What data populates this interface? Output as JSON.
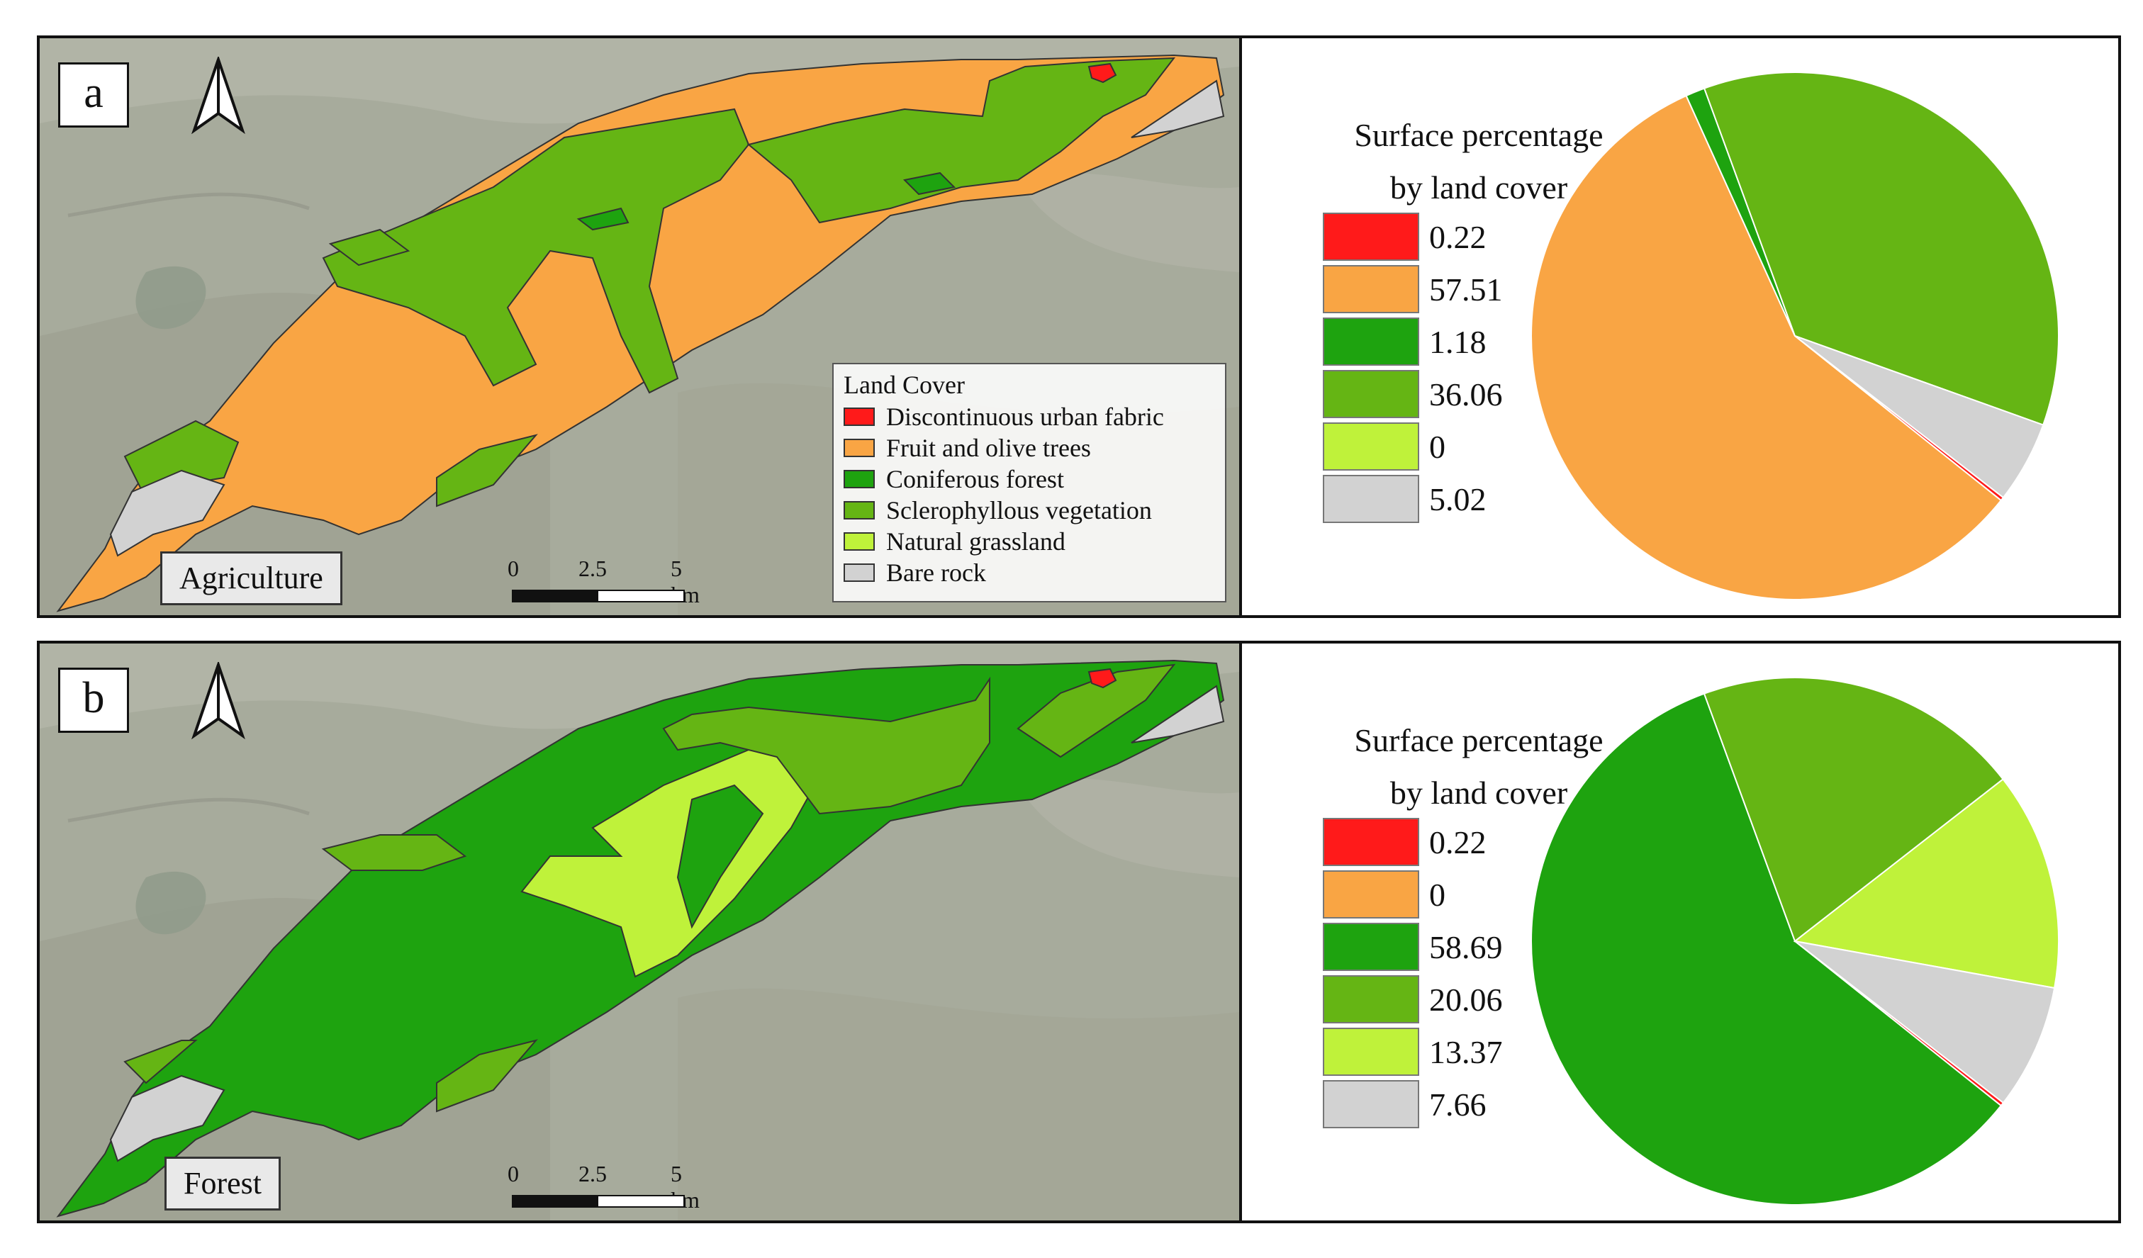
{
  "colors": {
    "urban": "#ff1a1a",
    "fruit": "#f9a544",
    "conifer": "#1ea30f",
    "scler": "#65b514",
    "grass": "#bff23a",
    "rock": "#d2d2d2"
  },
  "legend": {
    "title": "Land Cover",
    "items": [
      {
        "label": "Discontinuous urban fabric",
        "color": "#ff1a1a"
      },
      {
        "label": "Fruit and olive trees",
        "color": "#f9a544"
      },
      {
        "label": "Coniferous forest",
        "color": "#1ea30f"
      },
      {
        "label": "Sclerophyllous vegetation",
        "color": "#65b514"
      },
      {
        "label": "Natural grassland",
        "color": "#bff23a"
      },
      {
        "label": "Bare rock",
        "color": "#d2d2d2"
      }
    ]
  },
  "scale": {
    "ticks": [
      "0",
      "2.5",
      "5 km"
    ]
  },
  "north_arrow_icon": "north-arrow-icon",
  "panels": [
    {
      "letter": "a",
      "label": "Agriculture"
    },
    {
      "letter": "b",
      "label": "Forest"
    }
  ],
  "chart_data": [
    {
      "type": "pie",
      "title": "Surface percentage by land cover",
      "title_lines": [
        "Surface percentage",
        "by land cover"
      ],
      "categories": [
        "Discontinuous urban fabric",
        "Fruit and olive trees",
        "Coniferous forest",
        "Sclerophyllous vegetation",
        "Natural grassland",
        "Bare rock"
      ],
      "values": [
        0.22,
        57.51,
        1.18,
        36.06,
        0,
        5.02
      ],
      "labels": [
        "0.22",
        "57.51",
        "1.18",
        "36.06",
        "0",
        "5.02"
      ],
      "colors": [
        "#ff1a1a",
        "#f9a544",
        "#1ea30f",
        "#65b514",
        "#bff23a",
        "#d2d2d2"
      ]
    },
    {
      "type": "pie",
      "title": "Surface percentage by land cover",
      "title_lines": [
        "Surface percentage",
        "by land cover"
      ],
      "categories": [
        "Discontinuous urban fabric",
        "Fruit and olive trees",
        "Coniferous forest",
        "Sclerophyllous vegetation",
        "Natural grassland",
        "Bare rock"
      ],
      "values": [
        0.22,
        0,
        58.69,
        20.06,
        13.37,
        7.66
      ],
      "labels": [
        "0.22",
        "0",
        "58.69",
        "20.06",
        "13.37",
        "7.66"
      ],
      "colors": [
        "#ff1a1a",
        "#f9a544",
        "#1ea30f",
        "#65b514",
        "#bff23a",
        "#d2d2d2"
      ]
    }
  ]
}
